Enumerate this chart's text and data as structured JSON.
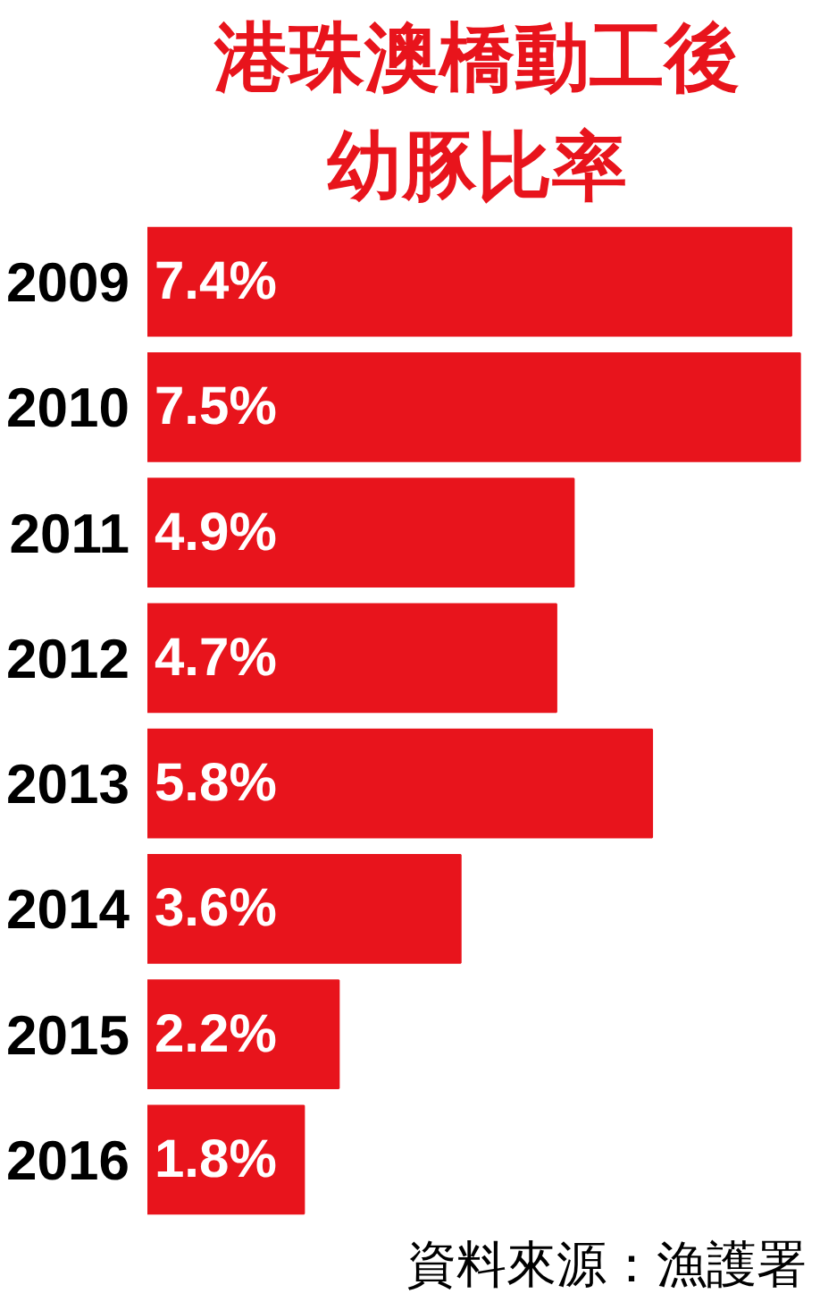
{
  "chart_data": {
    "type": "bar",
    "orientation": "horizontal",
    "title": "港珠澳橋動工後",
    "subtitle": "幼豚比率",
    "categories": [
      "2009",
      "2010",
      "2011",
      "2012",
      "2013",
      "2014",
      "2015",
      "2016"
    ],
    "values": [
      7.4,
      7.5,
      4.9,
      4.7,
      5.8,
      3.6,
      2.2,
      1.8
    ],
    "value_labels": [
      "7.4%",
      "7.5%",
      "4.9%",
      "4.7%",
      "5.8%",
      "3.6%",
      "2.2%",
      "1.8%"
    ],
    "color": "#e8141c",
    "annotations": [
      "資料來源：漁護署"
    ],
    "grid": false
  }
}
